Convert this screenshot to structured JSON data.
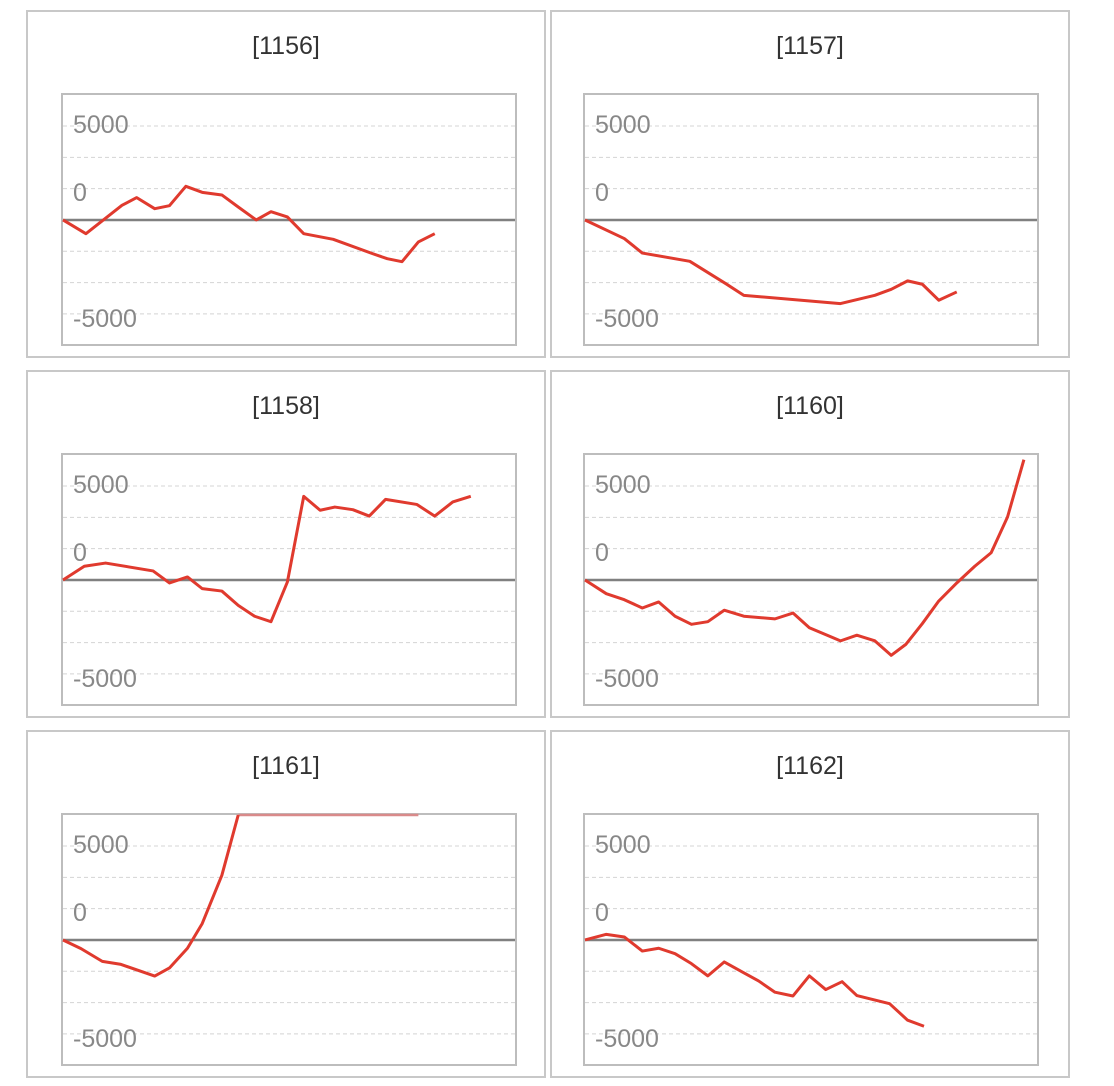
{
  "colors": {
    "line": "#e03a2e",
    "clipped_line": "#d98a8a",
    "baseline": "#808080",
    "grid": "#d4d4d4"
  },
  "chart_data": [
    {
      "type": "line",
      "title": "[1156]",
      "y_tick_labels": [
        "5000",
        "0",
        "-5000"
      ],
      "ylim": [
        -6600,
        6650
      ],
      "xlim": [
        0,
        27.6
      ],
      "grid": true,
      "baseline": 0,
      "x": [
        0,
        1.4,
        3.6,
        4.5,
        5.6,
        6.5,
        7.5,
        8.5,
        9.7,
        10.7,
        11.8,
        12.7,
        13.7,
        14.7,
        16.5,
        18.9,
        19.8,
        20.7,
        21.7,
        22.7
      ],
      "values": [
        0,
        -730,
        780,
        1190,
        600,
        760,
        1790,
        1470,
        1330,
        690,
        0,
        440,
        160,
        -730,
        -1030,
        -1790,
        -2060,
        -2220,
        -1170,
        -730
      ]
    },
    {
      "type": "line",
      "title": "[1157]",
      "y_tick_labels": [
        "5000",
        "0",
        "-5000"
      ],
      "ylim": [
        -6600,
        6650
      ],
      "xlim": [
        0,
        27.6
      ],
      "grid": true,
      "baseline": 0,
      "x": [
        0,
        2.4,
        3.5,
        6.4,
        8.6,
        9.7,
        15.6,
        17.7,
        18.7,
        19.7,
        20.6,
        21.6,
        22.7
      ],
      "values": [
        0,
        -990,
        -1760,
        -2200,
        -3390,
        -4010,
        -4450,
        -4010,
        -3690,
        -3240,
        -3420,
        -4270,
        -3830
      ]
    },
    {
      "type": "line",
      "title": "[1158]",
      "y_tick_labels": [
        "5000",
        "0",
        "-5000"
      ],
      "ylim": [
        -6600,
        6650
      ],
      "xlim": [
        0,
        27.6
      ],
      "grid": true,
      "baseline": 0,
      "x": [
        0,
        1.3,
        2.6,
        5.5,
        6.5,
        7.6,
        8.5,
        9.7,
        10.7,
        11.7,
        12.7,
        13.7,
        14.7,
        15.7,
        16.6,
        17.7,
        18.7,
        19.7,
        21.6,
        22.7,
        23.8,
        24.9
      ],
      "values": [
        0,
        730,
        900,
        480,
        -160,
        160,
        -460,
        -590,
        -1350,
        -1930,
        -2220,
        -110,
        4450,
        3710,
        3880,
        3740,
        3400,
        4290,
        4020,
        3400,
        4150,
        4450
      ]
    },
    {
      "type": "line",
      "title": "[1160]",
      "y_tick_labels": [
        "5000",
        "0",
        "-5000"
      ],
      "ylim": [
        -6600,
        6650
      ],
      "xlim": [
        0,
        27.6
      ],
      "grid": true,
      "baseline": 0,
      "x": [
        0,
        1.3,
        2.4,
        3.5,
        4.5,
        5.5,
        6.5,
        7.5,
        8.5,
        9.7,
        11.6,
        12.7,
        13.7,
        15.6,
        16.6,
        17.7,
        18.7,
        19.6,
        20.6,
        21.6,
        22.7,
        23.8,
        24.8,
        25.8,
        26.8
      ],
      "values": [
        0,
        -730,
        -1050,
        -1490,
        -1170,
        -1930,
        -2360,
        -2220,
        -1610,
        -1930,
        -2070,
        -1760,
        -2540,
        -3240,
        -2940,
        -3240,
        -4010,
        -3420,
        -2320,
        -1120,
        -160,
        730,
        1450,
        3350,
        6400
      ]
    },
    {
      "type": "line",
      "title": "[1161]",
      "y_tick_labels": [
        "5000",
        "0",
        "-5000"
      ],
      "ylim": [
        -6600,
        6650
      ],
      "xlim": [
        0,
        27.6
      ],
      "grid": true,
      "baseline": 0,
      "x": [
        0,
        1.1,
        2.4,
        3.5,
        5.6,
        6.5,
        7.6,
        8.5,
        9.7,
        10.7,
        21.7
      ],
      "values": [
        0,
        -460,
        -1140,
        -1290,
        -1920,
        -1490,
        -440,
        870,
        3440,
        6650,
        6650
      ]
    },
    {
      "type": "line",
      "title": "[1162]",
      "y_tick_labels": [
        "5000",
        "0",
        "-5000"
      ],
      "ylim": [
        -6600,
        6650
      ],
      "xlim": [
        0,
        27.6
      ],
      "grid": true,
      "baseline": 0,
      "x": [
        0,
        1.3,
        2.4,
        3.5,
        4.5,
        5.5,
        6.5,
        7.5,
        8.5,
        9.6,
        10.6,
        11.6,
        12.7,
        13.7,
        14.7,
        15.7,
        16.6,
        18.6,
        19.7,
        20.7
      ],
      "values": [
        0,
        300,
        160,
        -590,
        -440,
        -730,
        -1260,
        -1910,
        -1170,
        -1700,
        -2180,
        -2780,
        -2980,
        -1910,
        -2640,
        -2220,
        -2960,
        -3390,
        -4270,
        -4590
      ]
    }
  ]
}
